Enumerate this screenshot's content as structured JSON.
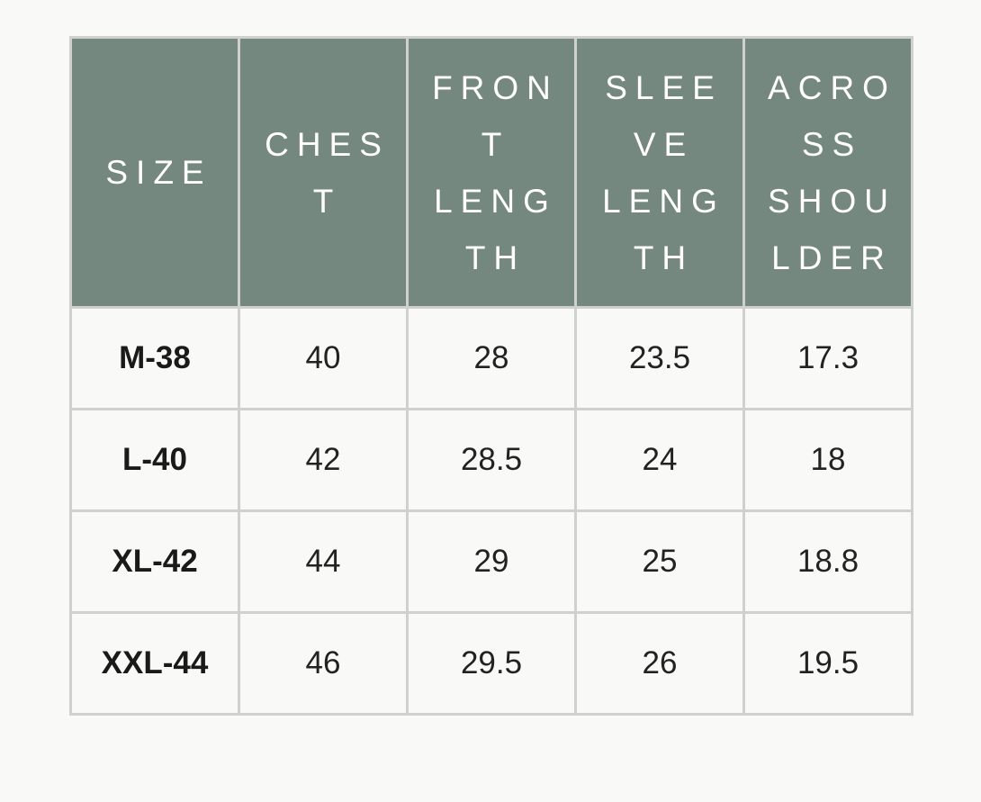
{
  "colors": {
    "header_bg": "#748880",
    "header_text": "#ffffff",
    "border": "#d0d1cf",
    "background": "#f9f9f7"
  },
  "headers": [
    {
      "lines": [
        "SIZE"
      ]
    },
    {
      "lines": [
        "CHES",
        "T"
      ]
    },
    {
      "lines": [
        "FRON",
        "T",
        "LENG",
        "TH"
      ]
    },
    {
      "lines": [
        "SLEE",
        "VE",
        "LENG",
        "TH"
      ]
    },
    {
      "lines": [
        "ACRO",
        "SS",
        "SHOU",
        "LDER"
      ]
    }
  ],
  "rows": [
    [
      "M-38",
      "40",
      "28",
      "23.5",
      "17.3"
    ],
    [
      "L-40",
      "42",
      "28.5",
      "24",
      "18"
    ],
    [
      "XL-42",
      "44",
      "29",
      "25",
      "18.8"
    ],
    [
      "XXL-44",
      "46",
      "29.5",
      "26",
      "19.5"
    ]
  ]
}
